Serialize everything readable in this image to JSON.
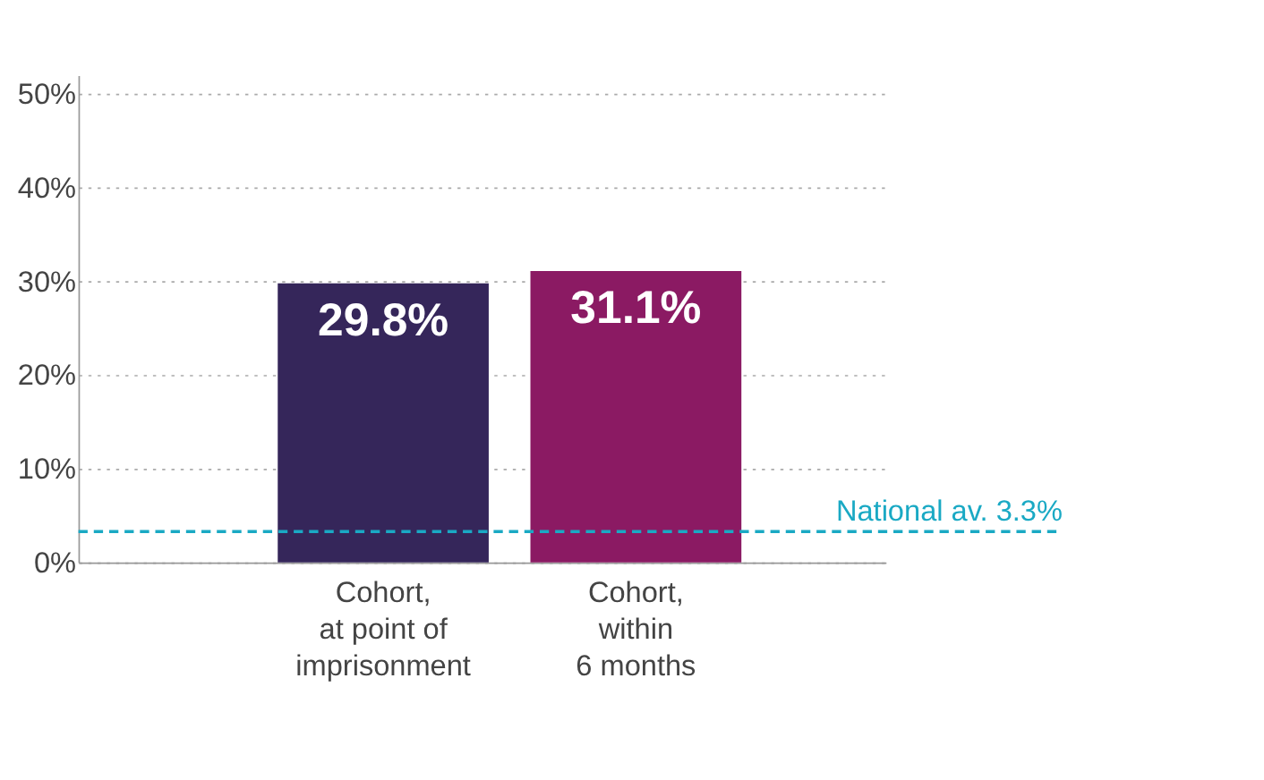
{
  "chart_data": {
    "type": "bar",
    "categories": [
      "Cohort,\nat point of\nimprisonment",
      "Cohort,\nwithin\n6 months"
    ],
    "values": [
      29.8,
      31.1
    ],
    "colors": [
      "#35265a",
      "#8b1a63"
    ],
    "value_labels": [
      "29.8%",
      "31.1%"
    ],
    "ylim": [
      0,
      52
    ],
    "yticks": [
      {
        "value": 0,
        "label": "0%"
      },
      {
        "value": 10,
        "label": "10%"
      },
      {
        "value": 20,
        "label": "20%"
      },
      {
        "value": 30,
        "label": "30%"
      },
      {
        "value": 40,
        "label": "40%"
      },
      {
        "value": 50,
        "label": "50%"
      }
    ],
    "grid": "y",
    "ref_lines": [
      {
        "axis": "y",
        "value": 3.3,
        "label": "National av. 3.3%",
        "color": "#1aa9c4",
        "line_style": "dashed"
      }
    ]
  }
}
